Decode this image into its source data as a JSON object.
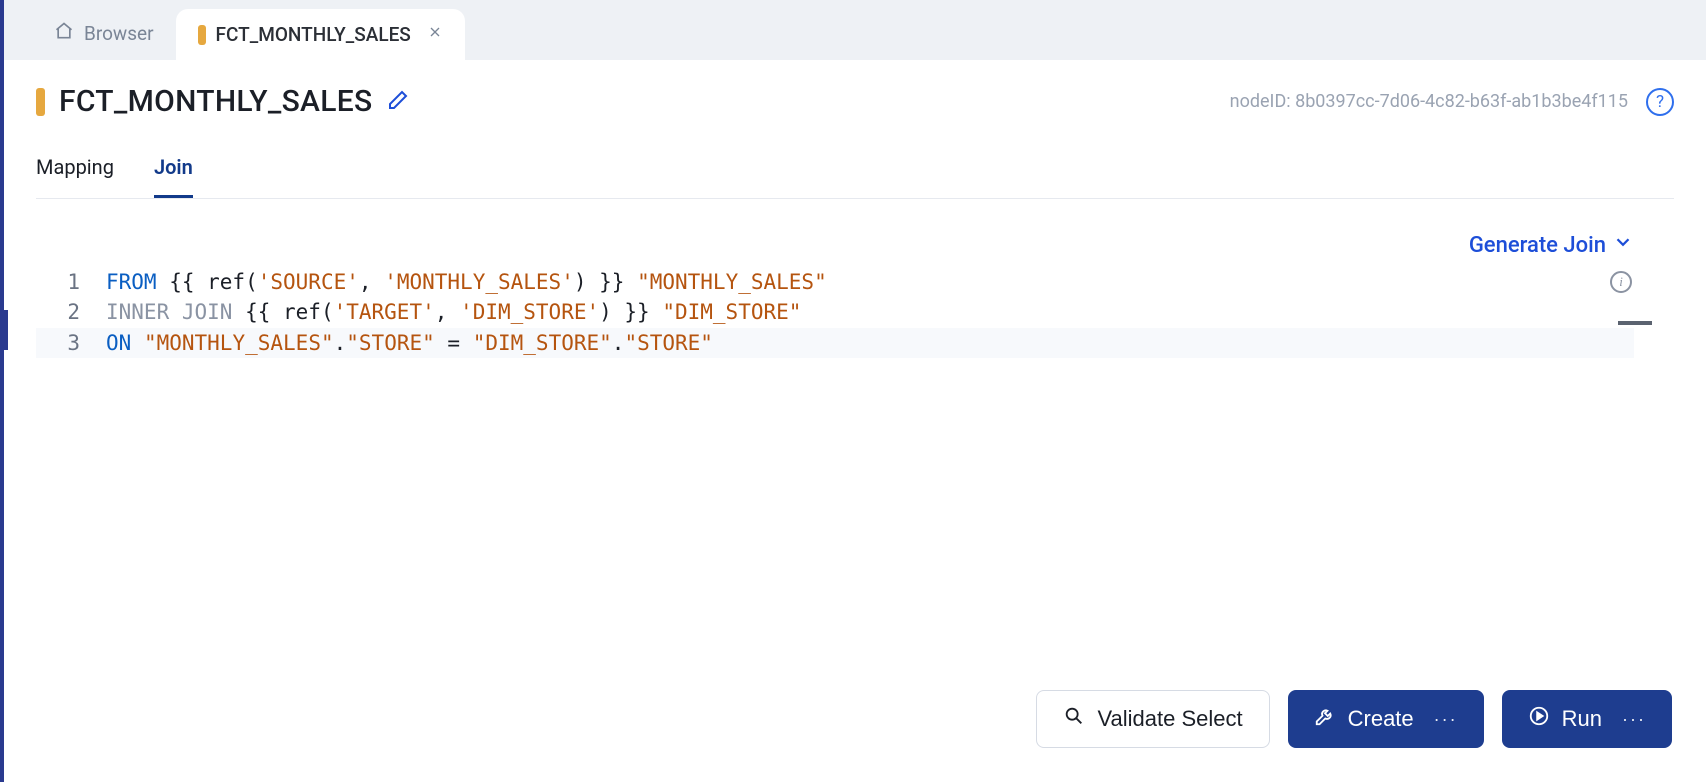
{
  "tabs": [
    {
      "label": "Browser",
      "active": false,
      "icon": "home"
    },
    {
      "label": "FCT_MONTHLY_SALES",
      "active": true,
      "icon": "dot",
      "closable": true
    }
  ],
  "title": "FCT_MONTHLY_SALES",
  "node_id_label": "nodeID: 8b0397cc-7d06-4c82-b63f-ab1b3be4f115",
  "subtabs": [
    {
      "label": "Mapping",
      "active": false
    },
    {
      "label": "Join",
      "active": true
    }
  ],
  "generate_link": "Generate Join",
  "code_lines": [
    {
      "num": "1",
      "tokens": [
        {
          "t": "FROM",
          "c": "kw-blue"
        },
        {
          "t": " {{ ref("
        },
        {
          "t": "'SOURCE'",
          "c": "str"
        },
        {
          "t": ", "
        },
        {
          "t": "'MONTHLY_SALES'",
          "c": "str"
        },
        {
          "t": ") }} "
        },
        {
          "t": "\"MONTHLY_SALES\"",
          "c": "str"
        }
      ]
    },
    {
      "num": "2",
      "tokens": [
        {
          "t": "INNER JOIN",
          "c": "kw-gray"
        },
        {
          "t": " {{ ref("
        },
        {
          "t": "'TARGET'",
          "c": "str"
        },
        {
          "t": ", "
        },
        {
          "t": "'DIM_STORE'",
          "c": "str"
        },
        {
          "t": ") }} "
        },
        {
          "t": "\"DIM_STORE\"",
          "c": "str"
        }
      ]
    },
    {
      "num": "3",
      "highlighted": true,
      "tokens": [
        {
          "t": "ON",
          "c": "kw-blue"
        },
        {
          "t": " "
        },
        {
          "t": "\"MONTHLY_SALES\"",
          "c": "str"
        },
        {
          "t": "."
        },
        {
          "t": "\"STORE\"",
          "c": "str"
        },
        {
          "t": " = "
        },
        {
          "t": "\"DIM_STORE\"",
          "c": "str"
        },
        {
          "t": "."
        },
        {
          "t": "\"STORE\"",
          "c": "str"
        }
      ]
    }
  ],
  "buttons": {
    "validate": "Validate Select",
    "create": "Create",
    "run": "Run"
  },
  "colors": {
    "accent_gold": "#e6a83f",
    "primary_blue": "#1e3d8f",
    "link_blue": "#1d4ed8",
    "code_kw_blue": "#0a5ec2",
    "code_kw_gray": "#8a93a3",
    "code_str": "#b5540f",
    "bg": "#f3f4f7",
    "panel": "#ffffff"
  }
}
